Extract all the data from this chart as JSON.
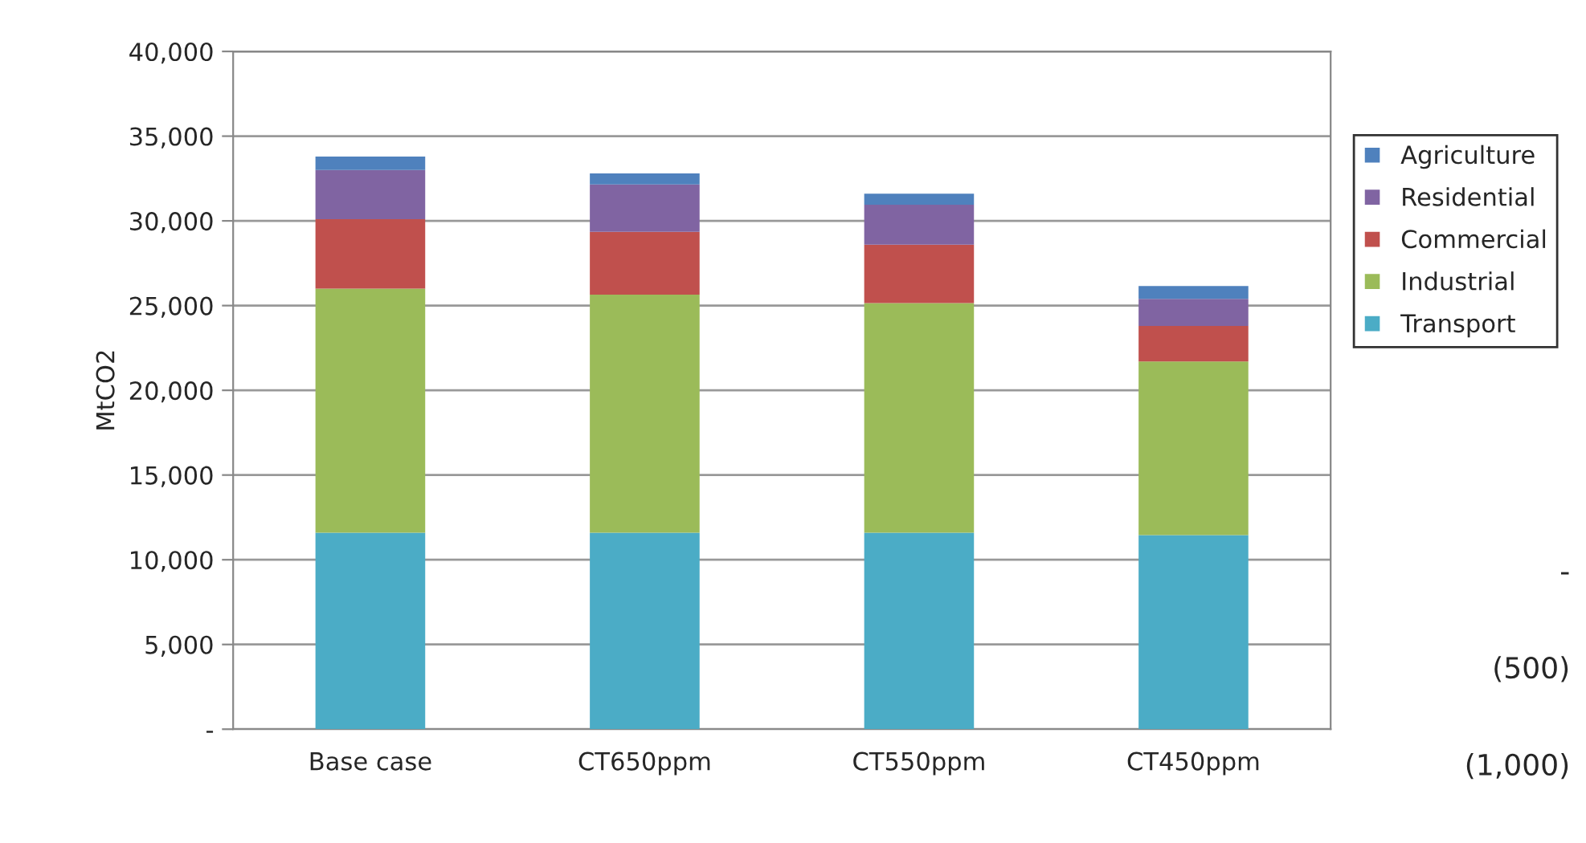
{
  "chart_data": {
    "type": "bar",
    "stacked": true,
    "ylabel": "MtCO2",
    "categories": [
      "Base case",
      "CT650ppm",
      "CT550ppm",
      "CT450ppm"
    ],
    "series": [
      {
        "name": "Transport",
        "color": "#4bacc6",
        "values": [
          11600,
          11600,
          11600,
          11450
        ]
      },
      {
        "name": "Industrial",
        "color": "#9bbb59",
        "values": [
          14400,
          14050,
          13550,
          10250
        ]
      },
      {
        "name": "Commercial",
        "color": "#c0504d",
        "values": [
          4100,
          3700,
          3450,
          2100
        ]
      },
      {
        "name": "Residential",
        "color": "#8064a2",
        "values": [
          2900,
          2800,
          2350,
          1600
        ]
      },
      {
        "name": "Agriculture",
        "color": "#4f81bd",
        "values": [
          800,
          650,
          650,
          750
        ]
      }
    ],
    "ylim": [
      0,
      40000
    ],
    "yticks": [
      {
        "value": 0,
        "label": "-"
      },
      {
        "value": 5000,
        "label": "5,000"
      },
      {
        "value": 10000,
        "label": "10,000"
      },
      {
        "value": 15000,
        "label": "15,000"
      },
      {
        "value": 20000,
        "label": "20,000"
      },
      {
        "value": 25000,
        "label": "25,000"
      },
      {
        "value": 30000,
        "label": "30,000"
      },
      {
        "value": 35000,
        "label": "35,000"
      },
      {
        "value": 40000,
        "label": "40,000"
      }
    ],
    "grid": "y",
    "legend": "right",
    "annotations": [
      "-",
      "(500)",
      "(1,000)"
    ]
  }
}
